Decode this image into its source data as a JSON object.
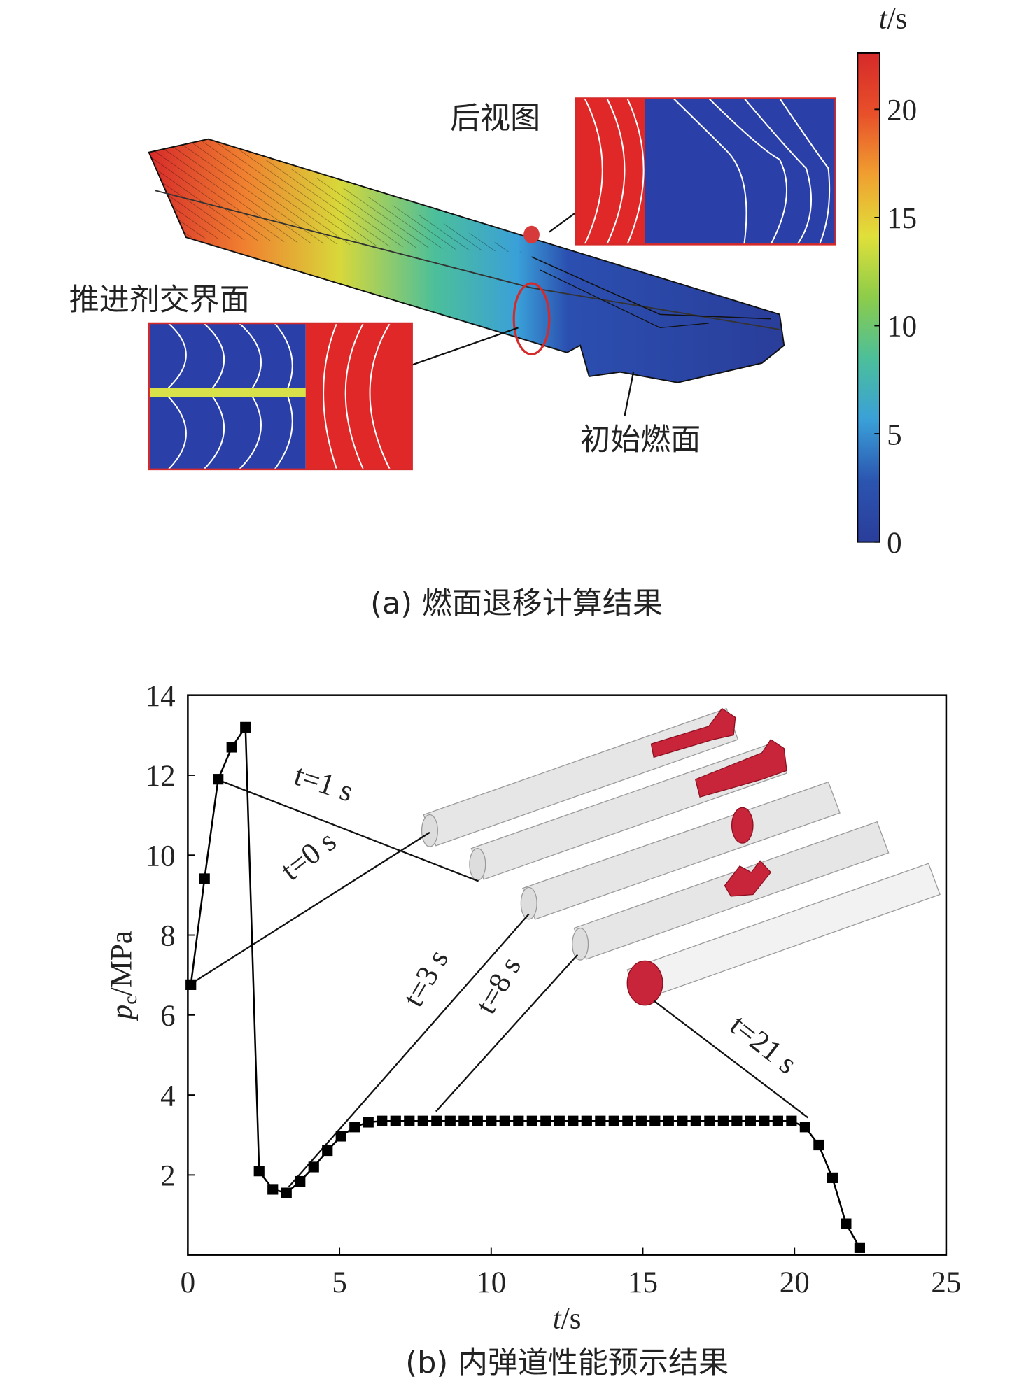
{
  "chart_data": [
    {
      "type": "colorbar",
      "title": {
        "symbol": "t",
        "unit": "/s"
      },
      "clim": [
        0,
        22.6
      ],
      "ticks": [
        0,
        5,
        10,
        15,
        20
      ],
      "colors": [
        "#2a3d9a",
        "#2b55b0",
        "#3aa0d8",
        "#4cbf9a",
        "#8ccc4a",
        "#e0e03a",
        "#f0a030",
        "#e8502a",
        "#d62a2a"
      ],
      "labels": [
        "后视图",
        "推进剂交界面",
        "初始燃面"
      ],
      "caption": "(a) 燃面退移计算结果"
    },
    {
      "type": "line",
      "xlabel": {
        "symbol": "t",
        "unit": "/s"
      },
      "ylabel": {
        "symbol": "p",
        "subscript": "c",
        "unit": "/MPa"
      },
      "xlim": [
        0,
        25
      ],
      "ylim": [
        0,
        14
      ],
      "xticks": [
        0,
        5,
        10,
        15,
        20,
        25
      ],
      "yticks": [
        2,
        4,
        6,
        8,
        10,
        12,
        14
      ],
      "color": "#000000",
      "x": [
        0.1,
        0.55,
        1.0,
        1.45,
        1.9,
        2.35,
        2.8,
        3.25,
        3.7,
        4.15,
        4.6,
        5.05,
        5.5,
        5.95,
        6.4,
        6.85,
        7.3,
        7.75,
        8.2,
        8.65,
        9.1,
        9.55,
        10.0,
        10.45,
        10.9,
        11.35,
        11.8,
        12.25,
        12.7,
        13.15,
        13.6,
        14.05,
        14.5,
        14.95,
        15.4,
        15.85,
        16.3,
        16.75,
        17.2,
        17.65,
        18.1,
        18.55,
        19.0,
        19.45,
        19.9,
        20.35,
        20.8,
        21.25,
        21.7,
        22.15
      ],
      "values": [
        6.76,
        9.41,
        11.9,
        12.7,
        13.2,
        2.1,
        1.64,
        1.55,
        1.84,
        2.2,
        2.61,
        2.97,
        3.2,
        3.32,
        3.35,
        3.35,
        3.35,
        3.35,
        3.35,
        3.35,
        3.35,
        3.35,
        3.35,
        3.35,
        3.35,
        3.35,
        3.35,
        3.35,
        3.35,
        3.35,
        3.35,
        3.35,
        3.35,
        3.35,
        3.35,
        3.35,
        3.35,
        3.35,
        3.35,
        3.35,
        3.35,
        3.35,
        3.35,
        3.35,
        3.35,
        3.2,
        2.75,
        1.93,
        0.78,
        0.18
      ],
      "annotations": [
        "t=1 s",
        "t=0 s",
        "t=3 s",
        "t=8 s",
        "t=21 s"
      ],
      "caption": "(b) 内弹道性能预示结果"
    }
  ]
}
